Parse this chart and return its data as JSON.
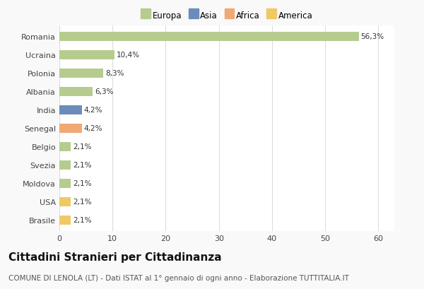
{
  "categories": [
    "Brasile",
    "USA",
    "Moldova",
    "Svezia",
    "Belgio",
    "Senegal",
    "India",
    "Albania",
    "Polonia",
    "Ucraina",
    "Romania"
  ],
  "values": [
    2.1,
    2.1,
    2.1,
    2.1,
    2.1,
    4.2,
    4.2,
    6.3,
    8.3,
    10.4,
    56.3
  ],
  "labels": [
    "2,1%",
    "2,1%",
    "2,1%",
    "2,1%",
    "2,1%",
    "4,2%",
    "4,2%",
    "6,3%",
    "8,3%",
    "10,4%",
    "56,3%"
  ],
  "colors": [
    "#f0c965",
    "#f0c965",
    "#b5cc8e",
    "#b5cc8e",
    "#b5cc8e",
    "#f0a875",
    "#6b8cba",
    "#b5cc8e",
    "#b5cc8e",
    "#b5cc8e",
    "#b5cc8e"
  ],
  "legend_labels": [
    "Europa",
    "Asia",
    "Africa",
    "America"
  ],
  "legend_colors": [
    "#b5cc8e",
    "#6b8cba",
    "#f0a875",
    "#f0c965"
  ],
  "title": "Cittadini Stranieri per Cittadinanza",
  "subtitle": "COMUNE DI LENOLA (LT) - Dati ISTAT al 1° gennaio di ogni anno - Elaborazione TUTTITALIA.IT",
  "xlim": [
    0,
    63
  ],
  "xticks": [
    0,
    10,
    20,
    30,
    40,
    50,
    60
  ],
  "background_color": "#f9f9f9",
  "plot_bg_color": "#ffffff",
  "grid_color": "#dddddd",
  "title_fontsize": 11,
  "subtitle_fontsize": 7.5,
  "label_fontsize": 7.5,
  "tick_fontsize": 8
}
